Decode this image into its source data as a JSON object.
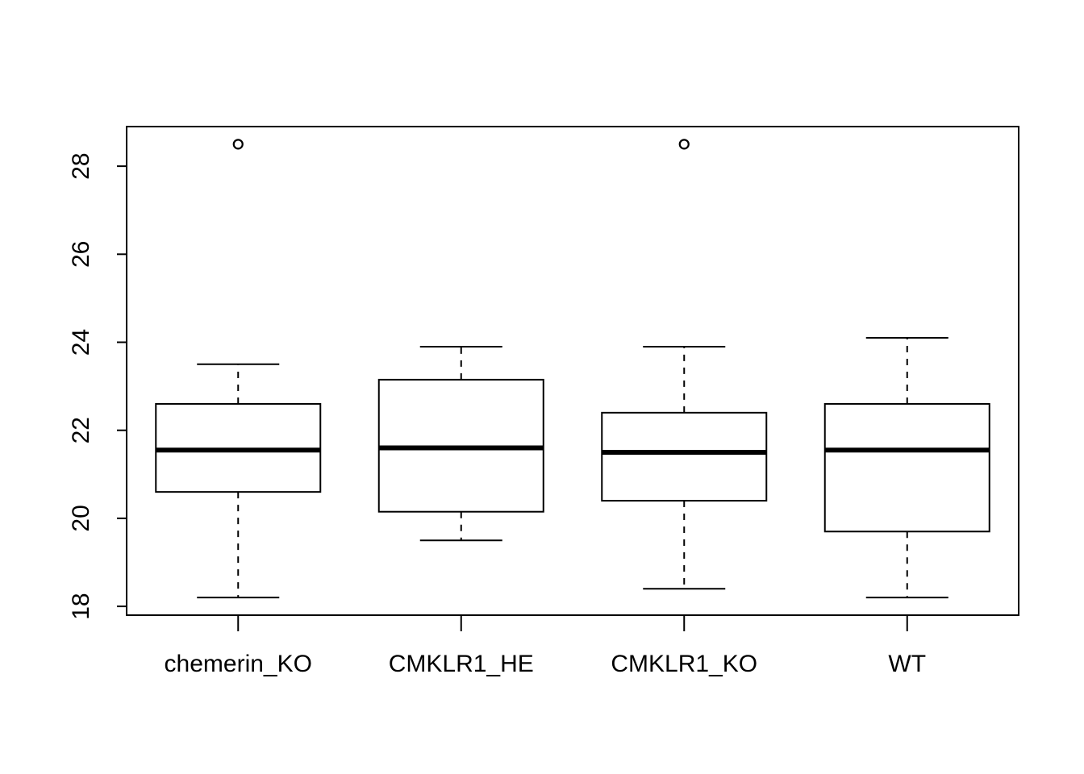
{
  "chart_data": {
    "type": "boxplot",
    "title": "",
    "xlabel": "",
    "ylabel": "",
    "ylim": [
      17.8,
      28.9
    ],
    "y_ticks": [
      18,
      20,
      22,
      24,
      26,
      28
    ],
    "categories": [
      "chemerin_KO",
      "CMKLR1_HE",
      "CMKLR1_KO",
      "WT"
    ],
    "boxes": [
      {
        "lower_whisker": 18.2,
        "q1": 20.6,
        "median": 21.55,
        "q3": 22.6,
        "upper_whisker": 23.5,
        "outliers": [
          28.5
        ]
      },
      {
        "lower_whisker": 19.5,
        "q1": 20.15,
        "median": 21.6,
        "q3": 23.15,
        "upper_whisker": 23.9,
        "outliers": []
      },
      {
        "lower_whisker": 18.4,
        "q1": 20.4,
        "median": 21.5,
        "q3": 22.4,
        "upper_whisker": 23.9,
        "outliers": [
          28.5
        ]
      },
      {
        "lower_whisker": 18.2,
        "q1": 19.7,
        "median": 21.55,
        "q3": 22.6,
        "upper_whisker": 24.1,
        "outliers": []
      }
    ],
    "colors": {
      "box_fill": "#ffffff",
      "stroke": "#000000"
    },
    "grid": false,
    "legend": "none"
  }
}
